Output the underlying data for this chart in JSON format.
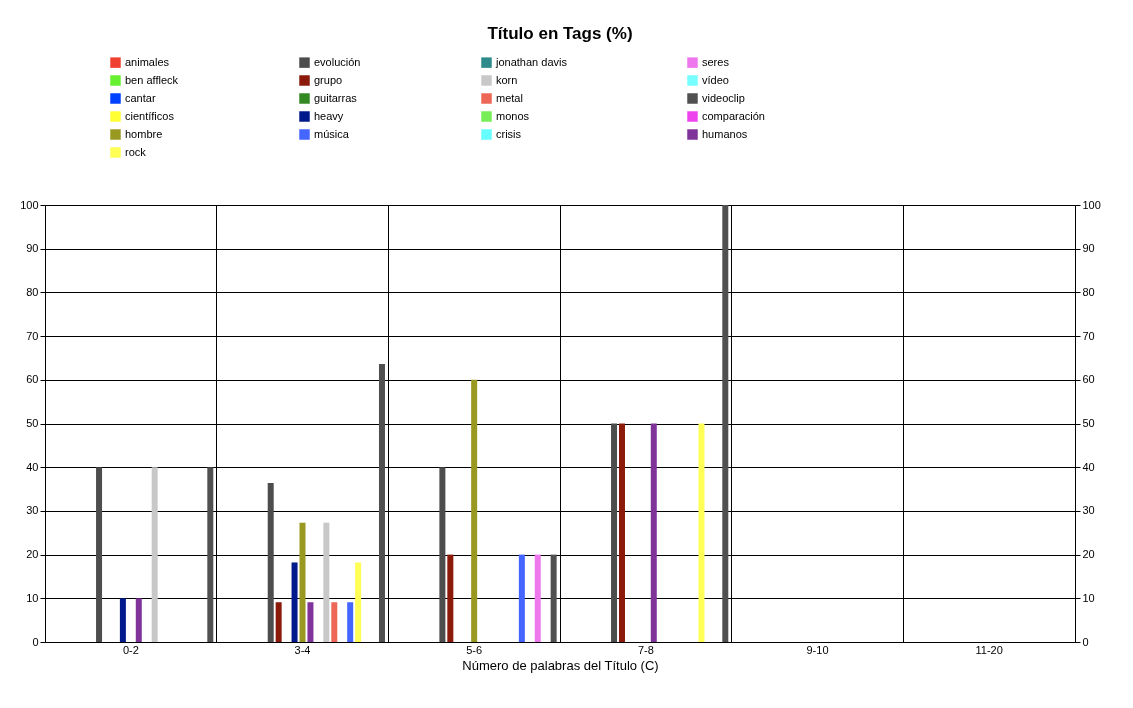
{
  "chart_data": {
    "type": "bar",
    "title": "Título en Tags (%)",
    "xlabel": "Número de palabras del Título (C)",
    "categories": [
      "0-2",
      "3-4",
      "5-6",
      "7-8",
      "9-10",
      "11-20"
    ],
    "series": [
      {
        "name": "animales",
        "color": "#f04030",
        "values": [
          0,
          0,
          0,
          0,
          0,
          0
        ]
      },
      {
        "name": "ben affleck",
        "color": "#66f030",
        "values": [
          0,
          0,
          0,
          0,
          0,
          0
        ]
      },
      {
        "name": "cantar",
        "color": "#0040ff",
        "values": [
          0,
          0,
          0,
          0,
          0,
          0
        ]
      },
      {
        "name": "científicos",
        "color": "#ffff33",
        "values": [
          0,
          0,
          0,
          0,
          0,
          0
        ]
      },
      {
        "name": "comparación",
        "color": "#ee44ee",
        "values": [
          0,
          0,
          0,
          0,
          0,
          0
        ]
      },
      {
        "name": "crisis",
        "color": "#66ffff",
        "values": [
          0,
          0,
          0,
          0,
          0,
          0
        ]
      },
      {
        "name": "evolución",
        "color": "#4d4d4d",
        "values": [
          40,
          36.4,
          40,
          50,
          0,
          0
        ]
      },
      {
        "name": "grupo",
        "color": "#8b1a0a",
        "values": [
          0,
          9.1,
          20,
          50,
          0,
          0
        ]
      },
      {
        "name": "guitarras",
        "color": "#338822",
        "values": [
          0,
          0,
          0,
          0,
          0,
          0
        ]
      },
      {
        "name": "heavy",
        "color": "#001a8c",
        "values": [
          10,
          18.2,
          0,
          0,
          0,
          0
        ]
      },
      {
        "name": "hombre",
        "color": "#999922",
        "values": [
          0,
          27.3,
          60,
          0,
          0,
          0
        ]
      },
      {
        "name": "humanos",
        "color": "#803399",
        "values": [
          10,
          9.1,
          0,
          50,
          0,
          0
        ]
      },
      {
        "name": "jonathan davis",
        "color": "#2e8b8b",
        "values": [
          0,
          0,
          0,
          0,
          0,
          0
        ]
      },
      {
        "name": "korn",
        "color": "#c8c8c8",
        "values": [
          40,
          27.3,
          0,
          0,
          0,
          0
        ]
      },
      {
        "name": "metal",
        "color": "#ee6655",
        "values": [
          0,
          9.1,
          0,
          0,
          0,
          0
        ]
      },
      {
        "name": "monos",
        "color": "#77ee55",
        "values": [
          0,
          0,
          0,
          0,
          0,
          0
        ]
      },
      {
        "name": "música",
        "color": "#4466ff",
        "values": [
          0,
          9.1,
          20,
          0,
          0,
          0
        ]
      },
      {
        "name": "rock",
        "color": "#ffff55",
        "values": [
          0,
          18.2,
          0,
          50,
          0,
          0
        ]
      },
      {
        "name": "seres",
        "color": "#ee77ee",
        "values": [
          0,
          0,
          20,
          0,
          0,
          0
        ]
      },
      {
        "name": "vídeo",
        "color": "#77ffff",
        "values": [
          0,
          0,
          0,
          0,
          0,
          0
        ]
      },
      {
        "name": "videoclip",
        "color": "#505050",
        "values": [
          40,
          63.6,
          20,
          100,
          0,
          0
        ]
      }
    ],
    "ylim": [
      0,
      100
    ],
    "yticks": [
      0,
      10,
      20,
      30,
      40,
      50,
      60,
      70,
      80,
      90,
      100
    ],
    "y2lim": [
      0,
      100
    ],
    "y2ticks": [
      0,
      10,
      20,
      30,
      40,
      50,
      60,
      70,
      80,
      90,
      100
    ],
    "grid": true,
    "legend": "top"
  }
}
